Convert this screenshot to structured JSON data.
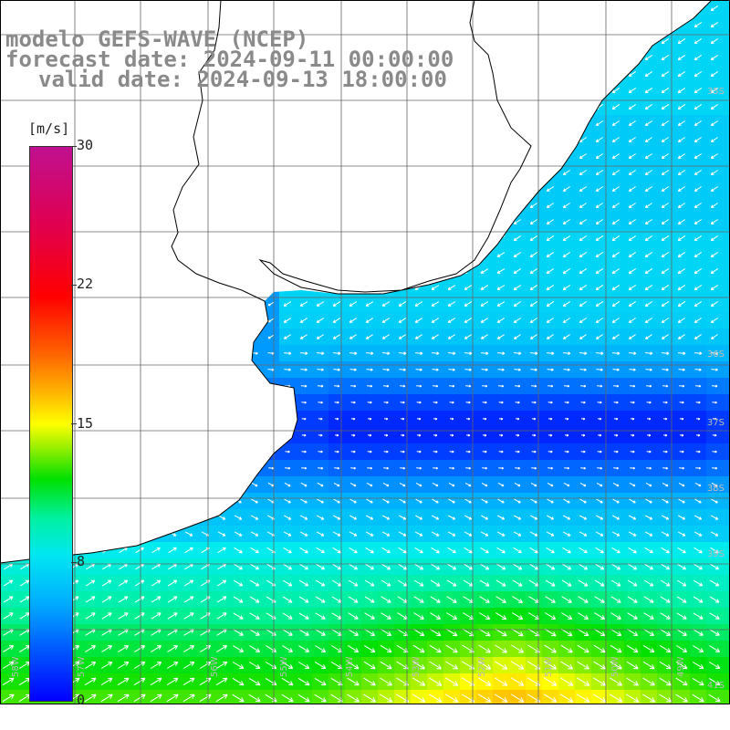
{
  "title": {
    "model": "modelo GEFS-WAVE (NCEP)",
    "forecast": "forecast date: 2024-09-11 00:00:00",
    "valid": "valid date: 2024-09-13 18:00:00"
  },
  "colorbar": {
    "unit": "[m/s]",
    "ticks": [
      "30",
      "22",
      "15",
      "8",
      "0"
    ],
    "tick_values": [
      30,
      22,
      15,
      8,
      0
    ]
  },
  "map": {
    "field": "wind speed with direction arrows",
    "lat_labels": [
      "35S",
      "36S",
      "37S",
      "38S",
      "39S",
      "41S"
    ],
    "lon_labels": [
      "58W",
      "57W",
      "56W",
      "55W",
      "54W",
      "53W",
      "52W",
      "51W",
      "50W",
      "49W"
    ],
    "colors": {
      "land": "#ffffff",
      "coast": "#000000",
      "grid": "#666666",
      "low_wind": "#0000ff",
      "mid_wind": "#00c8ff",
      "high_wind": "#00e000"
    }
  }
}
